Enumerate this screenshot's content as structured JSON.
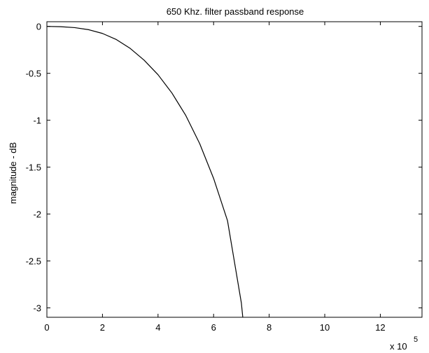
{
  "chart_data": {
    "type": "line",
    "title": "650 Khz. filter passband response",
    "xlabel": "",
    "ylabel": "magnitude - dB",
    "x_multiplier_label": "x 10",
    "x_multiplier_exponent": "5",
    "xlim": [
      0,
      1.35
    ],
    "ylim": [
      -3.1,
      0.05
    ],
    "xticks": [
      0,
      2,
      4,
      6,
      8,
      10,
      12
    ],
    "xtick_positions": [
      0,
      0.2,
      0.4,
      0.6,
      0.8,
      1.0,
      1.2
    ],
    "yticks": [
      0,
      -0.5,
      -1,
      -1.5,
      -2,
      -2.5,
      -3
    ],
    "ytick_labels": [
      "0",
      "-0.5",
      "-1",
      "-1.5",
      "-2",
      "-2.5",
      "-3"
    ],
    "grid": false,
    "series": [
      {
        "x": [
          0,
          0.05,
          0.1,
          0.15,
          0.2,
          0.25,
          0.3,
          0.35,
          0.4,
          0.45,
          0.5,
          0.55,
          0.6,
          0.65,
          0.7,
          0.705
        ],
        "y": [
          0,
          -0.003,
          -0.013,
          -0.035,
          -0.075,
          -0.14,
          -0.235,
          -0.36,
          -0.515,
          -0.71,
          -0.95,
          -1.25,
          -1.62,
          -2.07,
          -2.95,
          -3.1
        ]
      }
    ],
    "line_color": "#000000"
  }
}
